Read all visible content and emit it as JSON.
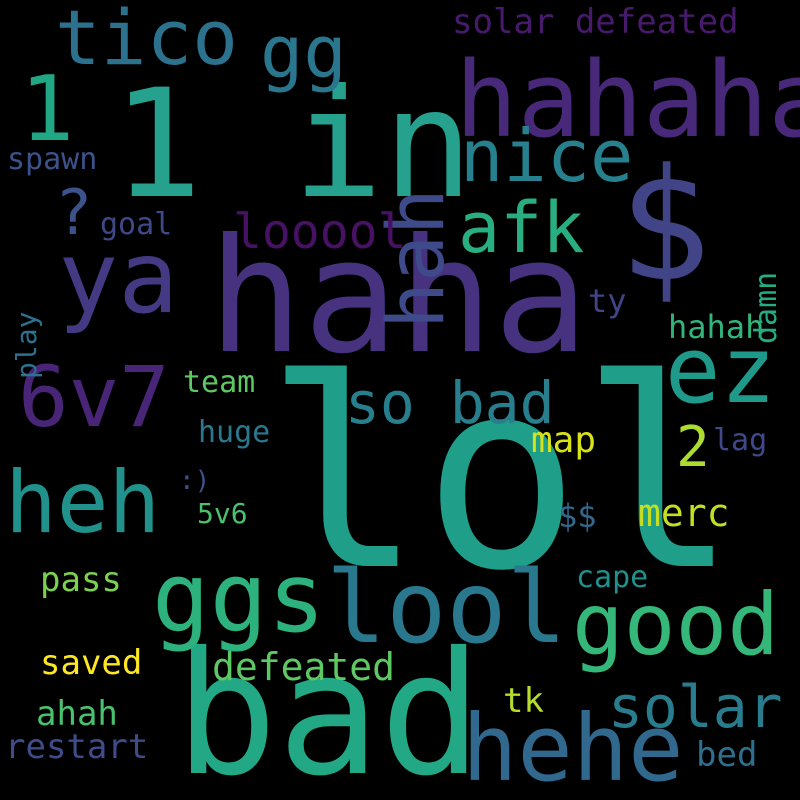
{
  "colors": {
    "background": "#000000",
    "palette": "viridis"
  },
  "words": [
    {
      "text": "lol",
      "color": "#1f9e89"
    },
    {
      "text": "haha",
      "color": "#46327e"
    },
    {
      "text": "bad",
      "color": "#22a884"
    },
    {
      "text": "1 in",
      "color": "#25a18e"
    },
    {
      "text": "hahaha",
      "color": "#482878"
    },
    {
      "text": "lool",
      "color": "#2a788e"
    },
    {
      "text": "ggs",
      "color": "#2db27d"
    },
    {
      "text": "hehe",
      "color": "#31688e"
    },
    {
      "text": "good",
      "color": "#35b779"
    },
    {
      "text": "$",
      "color": "#414487"
    },
    {
      "text": "ya",
      "color": "#443983"
    },
    {
      "text": "ez",
      "color": "#1f9a8a"
    },
    {
      "text": "heh",
      "color": "#21918c"
    },
    {
      "text": "6v7",
      "color": "#482576"
    },
    {
      "text": "tico",
      "color": "#2c728e"
    },
    {
      "text": "gg",
      "color": "#2a768e"
    },
    {
      "text": "hah",
      "color": "#3e4a89"
    },
    {
      "text": "nice",
      "color": "#27808e"
    },
    {
      "text": "afk",
      "color": "#28ae80"
    },
    {
      "text": "solar",
      "color": "#287c8e"
    },
    {
      "text": "so bad",
      "color": "#277f8e"
    },
    {
      "text": "1",
      "color": "#22a785"
    },
    {
      "text": "?",
      "color": "#3b528b"
    },
    {
      "text": "looool",
      "color": "#471164"
    },
    {
      "text": "defeated",
      "color": "#5ec962"
    },
    {
      "text": "solar defeated",
      "color": "#481a6c"
    },
    {
      "text": "2",
      "color": "#addc30"
    },
    {
      "text": "map",
      "color": "#d8e219"
    },
    {
      "text": "merc",
      "color": "#c2df23"
    },
    {
      "text": "saved",
      "color": "#fde725"
    },
    {
      "text": "pass",
      "color": "#7ad151"
    },
    {
      "text": "restart",
      "color": "#3e4c8a"
    },
    {
      "text": "ahah",
      "color": "#4ac16d"
    },
    {
      "text": "hahah",
      "color": "#31b57b"
    },
    {
      "text": "spawn",
      "color": "#3b528b"
    },
    {
      "text": "team",
      "color": "#5ec962"
    },
    {
      "text": "huge",
      "color": "#2a788e"
    },
    {
      "text": "cape",
      "color": "#21908d"
    },
    {
      "text": "damn",
      "color": "#25ac82"
    },
    {
      "text": "play",
      "color": "#2c728e"
    },
    {
      "text": "goal",
      "color": "#3e4989"
    },
    {
      "text": "lag",
      "color": "#3f4889"
    },
    {
      "text": "ty",
      "color": "#414487"
    },
    {
      "text": "5v6",
      "color": "#4ac16d"
    },
    {
      "text": "$$",
      "color": "#31688e"
    },
    {
      "text": "tk",
      "color": "#b5de2b"
    },
    {
      "text": "bed",
      "color": "#2e6e8e"
    },
    {
      "text": ":)",
      "color": "#3a538b"
    }
  ]
}
